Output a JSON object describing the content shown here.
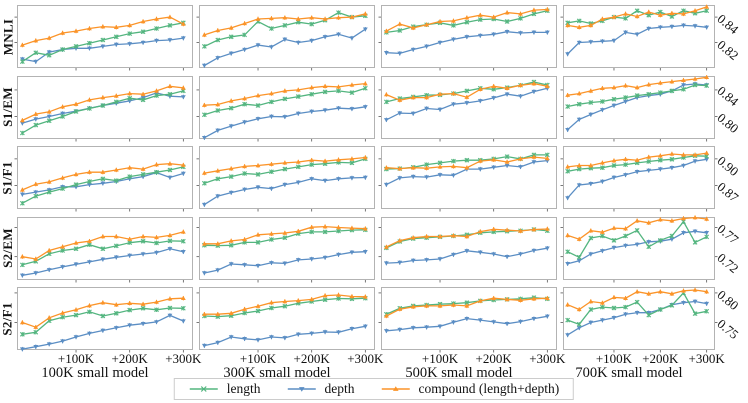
{
  "figure": {
    "description": "Grid of 20 line subplots (5 metrics x 4 small-model sizes) comparing length, depth and compound scaling during extra fine-tuning steps"
  },
  "colors": {
    "length": "#53b57f",
    "depth": "#5b8ec4",
    "compound": "#fb9429",
    "axis_border": "#b3b3b3",
    "tick": "#555555",
    "legend_border": "#cccccc",
    "text": "#111111"
  },
  "legend": {
    "items": [
      {
        "id": "length",
        "label": "length",
        "marker": "x"
      },
      {
        "id": "depth",
        "label": "depth",
        "marker": "v"
      },
      {
        "id": "compound",
        "label": "compound (length+depth)",
        "marker": "^"
      }
    ]
  },
  "chart_data": {
    "type": "line",
    "x": [
      0,
      25,
      50,
      75,
      100,
      125,
      150,
      175,
      200,
      225,
      250,
      275,
      300
    ],
    "x_unit": "K additional steps",
    "xlim": [
      -10,
      318
    ],
    "x_tick_values": [
      100,
      200,
      300
    ],
    "x_tick_labels": [
      "+100K",
      "+200K",
      "+300K"
    ],
    "grid": false,
    "legend_position": "bottom-center",
    "series_names": [
      "length",
      "depth",
      "compound (length+depth)"
    ],
    "rows": [
      {
        "id": "MNLI",
        "label": "MNLI",
        "ylim": [
          0.8,
          0.8495
        ],
        "yticks": [
          {
            "value": 0.84,
            "label": "0.84"
          },
          {
            "value": 0.82,
            "label": "0.82"
          }
        ]
      },
      {
        "id": "S1EM",
        "label": "S1/EM",
        "ylim": [
          0.766,
          0.861
        ],
        "yticks": [
          {
            "value": 0.84,
            "label": "0.84"
          },
          {
            "value": 0.8,
            "label": "0.80"
          }
        ]
      },
      {
        "id": "S1F1",
        "label": "S1/F1",
        "ylim": [
          0.8435,
          0.9145
        ],
        "yticks": [
          {
            "value": 0.9,
            "label": "0.90"
          },
          {
            "value": 0.87,
            "label": "0.87"
          }
        ]
      },
      {
        "id": "S2EM",
        "label": "S2/EM",
        "ylim": [
          0.68,
          0.788
        ],
        "yticks": [
          {
            "value": 0.77,
            "label": "0.77"
          },
          {
            "value": 0.72,
            "label": "0.72"
          }
        ]
      },
      {
        "id": "S2F1",
        "label": "S2/F1",
        "ylim": [
          0.7035,
          0.81
        ],
        "yticks": [
          {
            "value": 0.8,
            "label": "0.80"
          },
          {
            "value": 0.75,
            "label": "0.75"
          }
        ]
      }
    ],
    "cols": [
      {
        "id": "100K",
        "label": "100K small model"
      },
      {
        "id": "300K",
        "label": "300K small model"
      },
      {
        "id": "500K",
        "label": "500K small model"
      },
      {
        "id": "700K",
        "label": "700K small model"
      }
    ],
    "subplots": [
      {
        "row": "MNLI",
        "col": "100K",
        "length": [
          0.805,
          0.812,
          0.81,
          0.8145,
          0.817,
          0.8195,
          0.822,
          0.8245,
          0.827,
          0.8285,
          0.831,
          0.8335,
          0.8355
        ],
        "depth": [
          0.807,
          0.805,
          0.8125,
          0.8145,
          0.8155,
          0.8155,
          0.817,
          0.8185,
          0.819,
          0.82,
          0.8215,
          0.822,
          0.8235
        ],
        "compound": [
          0.818,
          0.8215,
          0.8235,
          0.8275,
          0.829,
          0.831,
          0.8325,
          0.832,
          0.8335,
          0.8365,
          0.8385,
          0.84,
          0.8345
        ]
      },
      {
        "row": "MNLI",
        "col": "300K",
        "length": [
          0.817,
          0.822,
          0.8245,
          0.826,
          0.8365,
          0.831,
          0.8335,
          0.836,
          0.8345,
          0.8375,
          0.8435,
          0.84,
          0.841
        ],
        "depth": [
          0.802,
          0.808,
          0.8115,
          0.8145,
          0.818,
          0.8165,
          0.8225,
          0.82,
          0.8215,
          0.8245,
          0.8265,
          0.8235,
          0.8305
        ],
        "compound": [
          0.826,
          0.8295,
          0.8315,
          0.835,
          0.8385,
          0.839,
          0.8395,
          0.8385,
          0.8395,
          0.8385,
          0.8395,
          0.84,
          0.8425
        ]
      },
      {
        "row": "MNLI",
        "col": "500K",
        "length": [
          0.828,
          0.8295,
          0.8325,
          0.834,
          0.8355,
          0.8335,
          0.836,
          0.838,
          0.8385,
          0.8365,
          0.839,
          0.8425,
          0.845
        ],
        "depth": [
          0.812,
          0.8115,
          0.8145,
          0.817,
          0.82,
          0.8225,
          0.8245,
          0.8255,
          0.8265,
          0.8285,
          0.8275,
          0.828,
          0.828
        ],
        "compound": [
          0.829,
          0.8345,
          0.8315,
          0.834,
          0.8365,
          0.837,
          0.8395,
          0.8415,
          0.84,
          0.8435,
          0.8425,
          0.8455,
          0.846
        ]
      },
      {
        "row": "MNLI",
        "col": "700K",
        "length": [
          0.8355,
          0.837,
          0.835,
          0.837,
          0.84,
          0.839,
          0.845,
          0.8415,
          0.844,
          0.8405,
          0.845,
          0.843,
          0.845
        ],
        "depth": [
          0.811,
          0.82,
          0.8205,
          0.821,
          0.8215,
          0.828,
          0.8265,
          0.831,
          0.832,
          0.8325,
          0.8335,
          0.833,
          0.832
        ],
        "compound": [
          0.8335,
          0.832,
          0.8335,
          0.8385,
          0.84,
          0.8425,
          0.8405,
          0.844,
          0.8415,
          0.843,
          0.8425,
          0.845,
          0.848
        ]
      },
      {
        "row": "S1EM",
        "col": "100K",
        "length": [
          0.775,
          0.787,
          0.7935,
          0.8,
          0.8075,
          0.812,
          0.8165,
          0.822,
          0.8275,
          0.825,
          0.8315,
          0.8335,
          0.8385
        ],
        "depth": [
          0.79,
          0.796,
          0.8,
          0.8045,
          0.808,
          0.8125,
          0.8165,
          0.82,
          0.8235,
          0.8285,
          0.8355,
          0.8305,
          0.8295
        ],
        "compound": [
          0.794,
          0.8035,
          0.807,
          0.8145,
          0.8185,
          0.825,
          0.8285,
          0.831,
          0.8345,
          0.8335,
          0.8385,
          0.8455,
          0.843
        ]
      },
      {
        "row": "S1EM",
        "col": "300K",
        "length": [
          0.8025,
          0.809,
          0.8125,
          0.8185,
          0.8165,
          0.822,
          0.8265,
          0.83,
          0.8335,
          0.837,
          0.8385,
          0.836,
          0.8425
        ],
        "depth": [
          0.768,
          0.779,
          0.7855,
          0.7915,
          0.7965,
          0.8,
          0.7995,
          0.8045,
          0.8075,
          0.8095,
          0.8125,
          0.8115,
          0.8145
        ],
        "compound": [
          0.817,
          0.818,
          0.8235,
          0.827,
          0.8315,
          0.8345,
          0.8385,
          0.84,
          0.8435,
          0.8455,
          0.8445,
          0.8475,
          0.8495
        ]
      },
      {
        "row": "S1EM",
        "col": "500K",
        "length": [
          0.822,
          0.827,
          0.8295,
          0.832,
          0.8325,
          0.8345,
          0.8385,
          0.8425,
          0.841,
          0.8435,
          0.847,
          0.852,
          0.8475
        ],
        "depth": [
          0.795,
          0.805,
          0.8045,
          0.812,
          0.8105,
          0.8185,
          0.8205,
          0.8235,
          0.828,
          0.8335,
          0.8305,
          0.8375,
          0.8425
        ],
        "compound": [
          0.833,
          0.8245,
          0.8285,
          0.8285,
          0.8335,
          0.8345,
          0.829,
          0.841,
          0.8455,
          0.8425,
          0.847,
          0.8495,
          0.8455
        ]
      },
      {
        "row": "S1EM",
        "col": "700K",
        "length": [
          0.815,
          0.8185,
          0.821,
          0.8225,
          0.826,
          0.8285,
          0.8315,
          0.8335,
          0.836,
          0.8385,
          0.841,
          0.8475,
          0.8465
        ],
        "depth": [
          0.78,
          0.7955,
          0.803,
          0.81,
          0.8165,
          0.8225,
          0.8285,
          0.8315,
          0.8335,
          0.8385,
          0.8475,
          0.849,
          0.8475
        ],
        "compound": [
          0.832,
          0.8345,
          0.8385,
          0.8425,
          0.8435,
          0.8465,
          0.8435,
          0.848,
          0.8505,
          0.8525,
          0.8545,
          0.8565,
          0.859
        ]
      },
      {
        "row": "S1F1",
        "col": "100K",
        "length": [
          0.85,
          0.858,
          0.8625,
          0.8665,
          0.871,
          0.8745,
          0.8775,
          0.8755,
          0.88,
          0.8825,
          0.885,
          0.8875,
          0.891
        ],
        "depth": [
          0.86,
          0.8625,
          0.865,
          0.8685,
          0.8685,
          0.871,
          0.8725,
          0.8745,
          0.8775,
          0.88,
          0.8845,
          0.879,
          0.8835
        ],
        "compound": [
          0.865,
          0.8715,
          0.874,
          0.8785,
          0.8825,
          0.885,
          0.885,
          0.8875,
          0.89,
          0.8885,
          0.8935,
          0.8945,
          0.893
        ]
      },
      {
        "row": "S1F1",
        "col": "300K",
        "length": [
          0.8725,
          0.8775,
          0.88,
          0.8835,
          0.8825,
          0.8855,
          0.8885,
          0.891,
          0.8935,
          0.8945,
          0.896,
          0.8955,
          0.9
        ],
        "depth": [
          0.8485,
          0.858,
          0.862,
          0.8655,
          0.868,
          0.8665,
          0.871,
          0.8735,
          0.8775,
          0.8755,
          0.8775,
          0.8785,
          0.879
        ],
        "compound": [
          0.884,
          0.8865,
          0.889,
          0.8915,
          0.8925,
          0.894,
          0.8955,
          0.8965,
          0.8985,
          0.8975,
          0.899,
          0.9,
          0.9015
        ]
      },
      {
        "row": "S1F1",
        "col": "500K",
        "length": [
          0.8885,
          0.889,
          0.8905,
          0.8935,
          0.8955,
          0.8975,
          0.8985,
          0.8985,
          0.9,
          0.9025,
          0.9,
          0.9045,
          0.9045
        ],
        "depth": [
          0.871,
          0.8785,
          0.88,
          0.8795,
          0.882,
          0.8815,
          0.8885,
          0.8885,
          0.8905,
          0.8925,
          0.891,
          0.8965,
          0.898
        ],
        "compound": [
          0.89,
          0.889,
          0.89,
          0.8895,
          0.891,
          0.8915,
          0.89,
          0.8975,
          0.899,
          0.8965,
          0.9,
          0.902,
          0.9005
        ]
      },
      {
        "row": "S1F1",
        "col": "700K",
        "length": [
          0.886,
          0.8885,
          0.8895,
          0.89,
          0.8925,
          0.8935,
          0.8955,
          0.897,
          0.8985,
          0.8995,
          0.9015,
          0.9035,
          0.903
        ],
        "depth": [
          0.856,
          0.8705,
          0.872,
          0.8745,
          0.879,
          0.882,
          0.8855,
          0.887,
          0.8885,
          0.89,
          0.8925,
          0.8975,
          0.8995
        ],
        "compound": [
          0.891,
          0.8925,
          0.8925,
          0.8955,
          0.898,
          0.8995,
          0.8985,
          0.902,
          0.9035,
          0.9055,
          0.9045,
          0.9045,
          0.9065
        ]
      },
      {
        "row": "S2EM",
        "col": "100K",
        "length": [
          0.706,
          0.712,
          0.725,
          0.7305,
          0.7335,
          0.7405,
          0.7335,
          0.7385,
          0.744,
          0.7465,
          0.7435,
          0.747,
          0.7465
        ],
        "depth": [
          0.688,
          0.692,
          0.6975,
          0.7025,
          0.707,
          0.711,
          0.7155,
          0.719,
          0.722,
          0.7245,
          0.727,
          0.7335,
          0.7285
        ],
        "compound": [
          0.72,
          0.716,
          0.7305,
          0.737,
          0.7435,
          0.7465,
          0.7545,
          0.7545,
          0.75,
          0.7545,
          0.753,
          0.7565,
          0.7625
        ]
      },
      {
        "row": "S2EM",
        "col": "300K",
        "length": [
          0.7395,
          0.739,
          0.7395,
          0.7445,
          0.7445,
          0.7495,
          0.7525,
          0.7595,
          0.7625,
          0.7625,
          0.764,
          0.7655,
          0.766
        ],
        "depth": [
          0.692,
          0.697,
          0.7075,
          0.706,
          0.7045,
          0.7095,
          0.7085,
          0.7145,
          0.716,
          0.7185,
          0.7235,
          0.7275,
          0.7285
        ],
        "compound": [
          0.742,
          0.742,
          0.747,
          0.7495,
          0.7575,
          0.759,
          0.7605,
          0.7635,
          0.7705,
          0.7715,
          0.77,
          0.769,
          0.768
        ]
      },
      {
        "row": "S2EM",
        "col": "500K",
        "length": [
          0.735,
          0.746,
          0.751,
          0.7525,
          0.754,
          0.7555,
          0.7575,
          0.761,
          0.7625,
          0.7635,
          0.7645,
          0.7665,
          0.7645
        ],
        "depth": [
          0.709,
          0.71,
          0.7135,
          0.7145,
          0.716,
          0.7235,
          0.73,
          0.7275,
          0.7245,
          0.72,
          0.7245,
          0.7305,
          0.7345
        ],
        "compound": [
          0.7365,
          0.7475,
          0.7525,
          0.7545,
          0.7545,
          0.756,
          0.7545,
          0.763,
          0.767,
          0.7655,
          0.764,
          0.7665,
          0.7675
        ]
      },
      {
        "row": "S2EM",
        "col": "700K",
        "length": [
          0.7285,
          0.719,
          0.752,
          0.7555,
          0.748,
          0.7555,
          0.765,
          0.737,
          0.748,
          0.7555,
          0.78,
          0.7445,
          0.754
        ],
        "depth": [
          0.708,
          0.713,
          0.7245,
          0.73,
          0.7355,
          0.739,
          0.741,
          0.7455,
          0.7465,
          0.75,
          0.761,
          0.7635,
          0.761
        ],
        "compound": [
          0.7565,
          0.75,
          0.7645,
          0.762,
          0.769,
          0.768,
          0.7815,
          0.778,
          0.7835,
          0.7815,
          0.7855,
          0.787,
          0.7845
        ]
      },
      {
        "row": "S2F1",
        "col": "100K",
        "length": [
          0.73,
          0.7335,
          0.753,
          0.759,
          0.7625,
          0.768,
          0.761,
          0.7655,
          0.771,
          0.774,
          0.7715,
          0.7745,
          0.774
        ],
        "depth": [
          0.705,
          0.709,
          0.7135,
          0.7185,
          0.7255,
          0.7315,
          0.7365,
          0.741,
          0.7455,
          0.748,
          0.751,
          0.762,
          0.7525
        ],
        "compound": [
          0.75,
          0.742,
          0.758,
          0.766,
          0.7715,
          0.7785,
          0.7835,
          0.78,
          0.7825,
          0.781,
          0.7845,
          0.79,
          0.791
        ]
      },
      {
        "row": "S2F1",
        "col": "300K",
        "length": [
          0.761,
          0.76,
          0.7615,
          0.766,
          0.7695,
          0.7745,
          0.7775,
          0.7825,
          0.7855,
          0.7885,
          0.7905,
          0.79,
          0.791
        ],
        "depth": [
          0.711,
          0.716,
          0.7255,
          0.7225,
          0.7205,
          0.7255,
          0.724,
          0.73,
          0.7315,
          0.734,
          0.7335,
          0.7395,
          0.7435
        ],
        "compound": [
          0.764,
          0.764,
          0.7655,
          0.7725,
          0.7775,
          0.7835,
          0.7855,
          0.787,
          0.789,
          0.7955,
          0.7965,
          0.794,
          0.7935
        ]
      },
      {
        "row": "S2F1",
        "col": "500K",
        "length": [
          0.764,
          0.774,
          0.778,
          0.7795,
          0.781,
          0.782,
          0.7835,
          0.7865,
          0.788,
          0.789,
          0.79,
          0.792,
          0.79
        ],
        "depth": [
          0.736,
          0.738,
          0.741,
          0.742,
          0.7435,
          0.7505,
          0.7565,
          0.754,
          0.751,
          0.748,
          0.7515,
          0.7565,
          0.7605
        ],
        "compound": [
          0.761,
          0.7725,
          0.7765,
          0.778,
          0.778,
          0.7795,
          0.778,
          0.7865,
          0.791,
          0.789,
          0.7875,
          0.79,
          0.791
        ]
      },
      {
        "row": "S2F1",
        "col": "700K",
        "length": [
          0.754,
          0.747,
          0.772,
          0.776,
          0.7745,
          0.776,
          0.7845,
          0.7625,
          0.772,
          0.779,
          0.8,
          0.765,
          0.769
        ],
        "depth": [
          0.729,
          0.741,
          0.75,
          0.754,
          0.758,
          0.764,
          0.7665,
          0.7665,
          0.772,
          0.78,
          0.7835,
          0.7855,
          0.782
        ],
        "compound": [
          0.78,
          0.772,
          0.7855,
          0.783,
          0.7925,
          0.791,
          0.802,
          0.7985,
          0.802,
          0.7985,
          0.8035,
          0.805,
          0.802
        ]
      }
    ]
  }
}
